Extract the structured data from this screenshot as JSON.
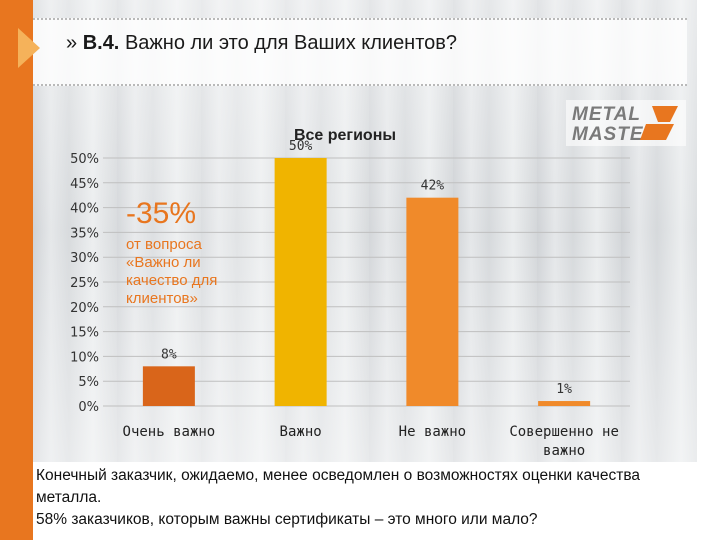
{
  "slide": {
    "title_marker": "»",
    "title_number": "B.4.",
    "title_text": "Важно ли это для Ваших клиентов?"
  },
  "logo": {
    "line1": "METAL",
    "line2": "MASTER",
    "accent_color": "#e8761f"
  },
  "callout": {
    "big": "-35%",
    "text": "от вопроса\n«Важно ли\nкачество для\nклиентов»"
  },
  "footer_text": [
    "Конечный заказчик, ожидаемо, менее осведомлен о возможностях оценки качества металла.",
    "58% заказчиков, которым важны сертификаты – это много или мало?"
  ],
  "colors": {
    "accent": "#e8761f",
    "bar_dark": "#d9651a",
    "bar_gold": "#f0b400",
    "bar_orange": "#f08a2a"
  },
  "chart_data": {
    "type": "bar",
    "title": "Все регионы",
    "categories": [
      "Очень важно",
      "Важно",
      "Не важно",
      "Совершенно не важно"
    ],
    "values": [
      8,
      50,
      42,
      1
    ],
    "value_labels": [
      "8%",
      "50%",
      "42%",
      "1%"
    ],
    "bar_colors": [
      "#d9651a",
      "#f0b400",
      "#f08a2a",
      "#f08a2a"
    ],
    "ylim": [
      0,
      50
    ],
    "yticks": [
      0,
      5,
      10,
      15,
      20,
      25,
      30,
      35,
      40,
      45,
      50
    ],
    "ytick_labels": [
      "0%",
      "5%",
      "10%",
      "15%",
      "20%",
      "25%",
      "30%",
      "35%",
      "40%",
      "45%",
      "50%"
    ],
    "grid": true,
    "legend": "none"
  }
}
